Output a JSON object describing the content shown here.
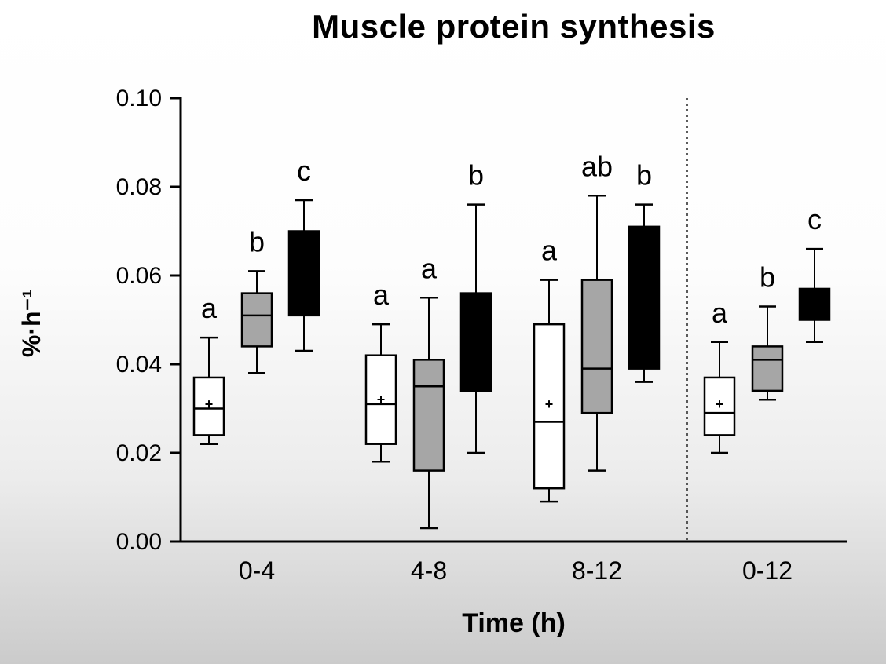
{
  "chart_data": {
    "type": "boxplot",
    "title": "Muscle protein synthesis",
    "xlabel": "Time (h)",
    "ylabel": "%·h⁻¹",
    "ylim": [
      0,
      0.1
    ],
    "yticks": [
      "0.00",
      "0.02",
      "0.04",
      "0.06",
      "0.08",
      "0.10"
    ],
    "categories": [
      "0-4",
      "4-8",
      "8-12",
      "0-12"
    ],
    "separator_after_category": 2,
    "grid": false,
    "legend": "none",
    "colors": {
      "axis": "#000000",
      "white_box": "#ffffff",
      "gray_box": "#a6a6a6",
      "black_box": "#000000"
    },
    "series": [
      {
        "name": "white",
        "fill": "#ffffff",
        "boxes": [
          {
            "low": 0.022,
            "q1": 0.024,
            "median": 0.03,
            "q3": 0.037,
            "high": 0.046,
            "mean": 0.031,
            "letter": "a"
          },
          {
            "low": 0.018,
            "q1": 0.022,
            "median": 0.031,
            "q3": 0.042,
            "high": 0.049,
            "mean": 0.032,
            "letter": "a"
          },
          {
            "low": 0.009,
            "q1": 0.012,
            "median": 0.027,
            "q3": 0.049,
            "high": 0.059,
            "mean": 0.031,
            "letter": "a"
          },
          {
            "low": 0.02,
            "q1": 0.024,
            "median": 0.029,
            "q3": 0.037,
            "high": 0.045,
            "mean": 0.031,
            "letter": "a"
          }
        ]
      },
      {
        "name": "gray",
        "fill": "#a6a6a6",
        "boxes": [
          {
            "low": 0.038,
            "q1": 0.044,
            "median": 0.051,
            "q3": 0.056,
            "high": 0.061,
            "mean": null,
            "letter": "b"
          },
          {
            "low": 0.003,
            "q1": 0.016,
            "median": 0.035,
            "q3": 0.041,
            "high": 0.055,
            "mean": null,
            "letter": "a"
          },
          {
            "low": 0.016,
            "q1": 0.029,
            "median": 0.039,
            "q3": 0.059,
            "high": 0.078,
            "mean": null,
            "letter": "ab"
          },
          {
            "low": 0.032,
            "q1": 0.034,
            "median": 0.041,
            "q3": 0.044,
            "high": 0.053,
            "mean": null,
            "letter": "b"
          }
        ]
      },
      {
        "name": "black",
        "fill": "#000000",
        "boxes": [
          {
            "low": 0.043,
            "q1": 0.051,
            "median": null,
            "q3": 0.07,
            "high": 0.077,
            "mean": null,
            "letter": "c"
          },
          {
            "low": 0.02,
            "q1": 0.034,
            "median": null,
            "q3": 0.056,
            "high": 0.076,
            "mean": null,
            "letter": "b"
          },
          {
            "low": 0.036,
            "q1": 0.039,
            "median": null,
            "q3": 0.071,
            "high": 0.076,
            "mean": null,
            "letter": "b"
          },
          {
            "low": 0.045,
            "q1": 0.05,
            "median": null,
            "q3": 0.057,
            "high": 0.066,
            "mean": null,
            "letter": "c"
          }
        ]
      }
    ]
  }
}
